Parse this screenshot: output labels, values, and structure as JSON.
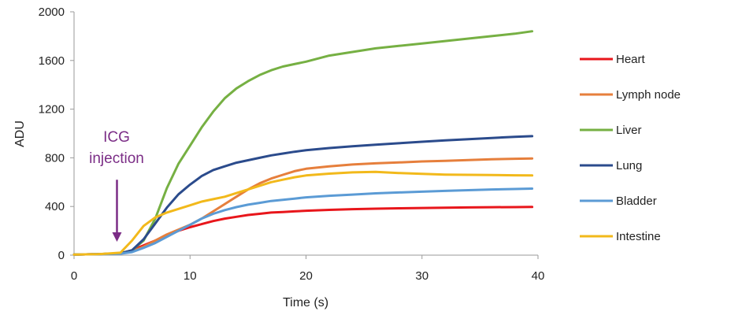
{
  "chart_data": {
    "type": "line",
    "title": "",
    "xlabel": "Time (s)",
    "ylabel": "ADU",
    "xlim": [
      0,
      40
    ],
    "ylim": [
      0,
      2000
    ],
    "xticks": [
      0,
      10,
      20,
      30,
      40
    ],
    "yticks": [
      0,
      400,
      800,
      1200,
      1600,
      2000
    ],
    "grid": false,
    "legend_position": "right",
    "annotation": {
      "text_line1": "ICG",
      "text_line2": "injection",
      "arrow_x": 3.7,
      "arrow_y_top": 620,
      "arrow_y_bottom": 110,
      "color": "#7b2d86"
    },
    "series": [
      {
        "name": "Heart",
        "color": "#e8161b",
        "x": [
          0,
          2,
          4,
          5,
          6,
          7,
          8,
          9,
          10,
          11,
          12,
          13,
          14,
          15,
          16,
          17,
          18,
          19,
          20,
          22,
          24,
          26,
          28,
          30,
          32,
          34,
          36,
          38,
          39.5
        ],
        "y": [
          5,
          8,
          15,
          40,
          80,
          120,
          160,
          200,
          230,
          255,
          280,
          300,
          315,
          330,
          340,
          350,
          355,
          360,
          365,
          372,
          378,
          382,
          385,
          388,
          390,
          392,
          394,
          395,
          396
        ]
      },
      {
        "name": "Lymph node",
        "color": "#e67f3c",
        "x": [
          0,
          2,
          4,
          5,
          6,
          7,
          8,
          9,
          10,
          11,
          12,
          13,
          14,
          15,
          16,
          17,
          18,
          19,
          20,
          22,
          24,
          26,
          28,
          30,
          32,
          34,
          36,
          38,
          39.5
        ],
        "y": [
          5,
          8,
          15,
          30,
          70,
          120,
          170,
          210,
          250,
          300,
          360,
          420,
          480,
          540,
          590,
          630,
          660,
          690,
          710,
          730,
          745,
          755,
          762,
          770,
          775,
          782,
          788,
          792,
          795
        ]
      },
      {
        "name": "Liver",
        "color": "#76b043",
        "x": [
          0,
          2,
          4,
          5,
          6,
          7,
          8,
          9,
          10,
          11,
          12,
          13,
          14,
          15,
          16,
          17,
          18,
          19,
          20,
          22,
          24,
          26,
          28,
          30,
          32,
          34,
          36,
          38,
          39.5
        ],
        "y": [
          5,
          8,
          15,
          40,
          120,
          300,
          550,
          750,
          900,
          1050,
          1180,
          1290,
          1370,
          1430,
          1480,
          1520,
          1550,
          1570,
          1590,
          1640,
          1670,
          1700,
          1720,
          1740,
          1760,
          1780,
          1800,
          1820,
          1840
        ]
      },
      {
        "name": "Lung",
        "color": "#2b4b8c",
        "x": [
          0,
          2,
          4,
          5,
          6,
          7,
          8,
          9,
          10,
          11,
          12,
          13,
          14,
          15,
          16,
          17,
          18,
          19,
          20,
          22,
          24,
          26,
          28,
          30,
          32,
          34,
          36,
          38,
          39.5
        ],
        "y": [
          5,
          8,
          15,
          40,
          130,
          260,
          390,
          500,
          580,
          650,
          700,
          730,
          760,
          780,
          800,
          820,
          835,
          850,
          862,
          880,
          895,
          908,
          920,
          932,
          943,
          953,
          963,
          972,
          978
        ]
      },
      {
        "name": "Bladder",
        "color": "#5b9bd5",
        "x": [
          0,
          2,
          4,
          5,
          6,
          7,
          8,
          9,
          10,
          11,
          12,
          13,
          14,
          15,
          16,
          17,
          18,
          19,
          20,
          22,
          24,
          26,
          28,
          30,
          32,
          34,
          36,
          38,
          39.5
        ],
        "y": [
          5,
          8,
          12,
          25,
          60,
          100,
          150,
          200,
          250,
          300,
          340,
          370,
          395,
          415,
          430,
          445,
          455,
          465,
          475,
          488,
          498,
          508,
          515,
          522,
          528,
          534,
          540,
          544,
          547
        ]
      },
      {
        "name": "Intestine",
        "color": "#f2b91b",
        "x": [
          0,
          2,
          4,
          5,
          6,
          7,
          8,
          9,
          10,
          11,
          12,
          13,
          14,
          15,
          16,
          17,
          18,
          19,
          20,
          22,
          24,
          26,
          28,
          30,
          32,
          34,
          36,
          38,
          39.5
        ],
        "y": [
          5,
          8,
          20,
          120,
          240,
          310,
          350,
          380,
          410,
          440,
          460,
          480,
          510,
          540,
          570,
          600,
          620,
          640,
          655,
          670,
          680,
          685,
          675,
          668,
          662,
          660,
          658,
          656,
          655
        ]
      }
    ]
  }
}
